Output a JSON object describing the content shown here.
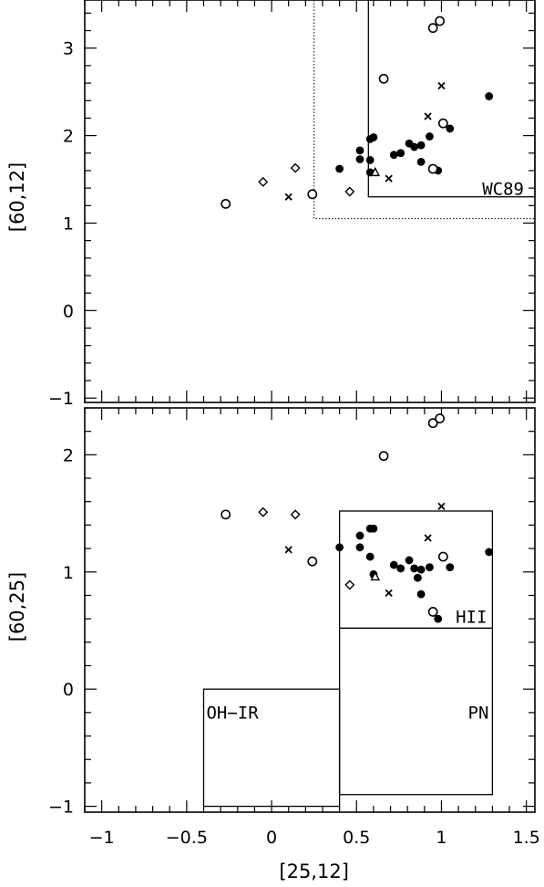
{
  "chart_data": [
    {
      "type": "scatter",
      "title": "",
      "xlabel": "",
      "ylabel": "[60,12]",
      "xlim": [
        -1.1,
        1.55
      ],
      "ylim": [
        -1.05,
        3.55
      ],
      "yticks": [
        -1,
        0,
        1,
        2,
        3
      ],
      "ytick_labels": [
        "−1",
        "0",
        "1",
        "2",
        "3"
      ],
      "grid": false,
      "regions": [
        {
          "label": "WC89",
          "x": [
            0.57,
            1.55
          ],
          "y": [
            1.3,
            3.55
          ],
          "style": "solid"
        },
        {
          "label": "",
          "x": [
            0.25,
            1.55
          ],
          "y": [
            1.05,
            3.55
          ],
          "style": "dotted"
        }
      ],
      "series": [
        {
          "marker": "filled-circle",
          "points": [
            [
              0.4,
              1.62
            ],
            [
              0.52,
              1.83
            ],
            [
              0.52,
              1.73
            ],
            [
              0.58,
              1.96
            ],
            [
              0.58,
              1.72
            ],
            [
              0.58,
              1.58
            ],
            [
              0.6,
              1.98
            ],
            [
              0.72,
              1.78
            ],
            [
              0.76,
              1.8
            ],
            [
              0.81,
              1.91
            ],
            [
              0.84,
              1.87
            ],
            [
              0.88,
              1.89
            ],
            [
              0.88,
              1.7
            ],
            [
              0.93,
              1.99
            ],
            [
              0.98,
              1.6
            ],
            [
              1.05,
              2.08
            ],
            [
              1.28,
              2.45
            ]
          ]
        },
        {
          "marker": "open-circle",
          "points": [
            [
              -0.27,
              1.22
            ],
            [
              0.24,
              1.33
            ],
            [
              0.66,
              2.65
            ],
            [
              0.95,
              3.23
            ],
            [
              0.99,
              3.31
            ],
            [
              0.95,
              1.62
            ],
            [
              1.01,
              2.14
            ]
          ]
        },
        {
          "marker": "cross",
          "points": [
            [
              0.1,
              1.3
            ],
            [
              0.69,
              1.51
            ],
            [
              0.92,
              2.22
            ],
            [
              1.0,
              2.57
            ]
          ]
        },
        {
          "marker": "diamond",
          "points": [
            [
              -0.05,
              1.47
            ],
            [
              0.14,
              1.63
            ],
            [
              0.46,
              1.36
            ]
          ]
        },
        {
          "marker": "triangle",
          "points": [
            [
              0.61,
              1.58
            ]
          ]
        }
      ]
    },
    {
      "type": "scatter",
      "title": "",
      "xlabel": "[25,12]",
      "ylabel": "[60,25]",
      "xlim": [
        -1.1,
        1.55
      ],
      "ylim": [
        -1.05,
        2.4
      ],
      "xticks": [
        -1,
        -0.5,
        0,
        0.5,
        1,
        1.5
      ],
      "xtick_labels": [
        "−1",
        "−0.5",
        "0",
        "0.5",
        "1",
        "1.5"
      ],
      "yticks": [
        -1,
        0,
        1,
        2
      ],
      "ytick_labels": [
        "−1",
        "0",
        "1",
        "2"
      ],
      "grid": false,
      "regions": [
        {
          "label": "OH−IR",
          "x": [
            -0.4,
            0.4
          ],
          "y": [
            -1.0,
            0.0
          ],
          "style": "solid"
        },
        {
          "label": "HII",
          "x": [
            0.4,
            1.3
          ],
          "y": [
            0.52,
            1.52
          ],
          "style": "solid"
        },
        {
          "label": "PN",
          "x": [
            0.4,
            1.3
          ],
          "y": [
            -0.9,
            0.52
          ],
          "style": "solid"
        }
      ],
      "series": [
        {
          "marker": "filled-circle",
          "points": [
            [
              0.4,
              1.21
            ],
            [
              0.52,
              1.31
            ],
            [
              0.52,
              1.21
            ],
            [
              0.58,
              1.37
            ],
            [
              0.58,
              1.13
            ],
            [
              0.6,
              1.37
            ],
            [
              0.6,
              0.98
            ],
            [
              0.72,
              1.06
            ],
            [
              0.76,
              1.03
            ],
            [
              0.81,
              1.1
            ],
            [
              0.84,
              1.03
            ],
            [
              0.86,
              0.95
            ],
            [
              0.88,
              1.02
            ],
            [
              0.88,
              0.81
            ],
            [
              0.93,
              1.04
            ],
            [
              0.98,
              0.6
            ],
            [
              1.05,
              1.04
            ],
            [
              1.28,
              1.17
            ]
          ]
        },
        {
          "marker": "open-circle",
          "points": [
            [
              -0.27,
              1.49
            ],
            [
              0.24,
              1.09
            ],
            [
              0.66,
              1.99
            ],
            [
              0.95,
              2.27
            ],
            [
              0.99,
              2.31
            ],
            [
              0.95,
              0.66
            ],
            [
              1.01,
              1.13
            ]
          ]
        },
        {
          "marker": "cross",
          "points": [
            [
              0.1,
              1.19
            ],
            [
              0.69,
              0.82
            ],
            [
              0.92,
              1.29
            ],
            [
              1.0,
              1.56
            ]
          ]
        },
        {
          "marker": "diamond",
          "points": [
            [
              -0.05,
              1.51
            ],
            [
              0.14,
              1.49
            ],
            [
              0.46,
              0.89
            ]
          ]
        },
        {
          "marker": "triangle",
          "points": [
            [
              0.61,
              0.96
            ]
          ]
        }
      ]
    }
  ]
}
